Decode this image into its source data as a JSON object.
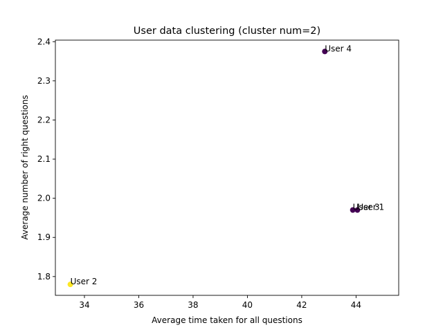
{
  "chart_data": {
    "type": "scatter",
    "title": "User data clustering (cluster num=2)",
    "xlabel": "Average time taken for all questions",
    "ylabel": "Average number of right questions",
    "xlim": [
      32.93,
      45.57
    ],
    "ylim": [
      1.752,
      2.404
    ],
    "xticks": [
      34,
      36,
      38,
      40,
      42,
      44
    ],
    "yticks": [
      1.8,
      1.9,
      2.0,
      2.1,
      2.2,
      2.3,
      2.4
    ],
    "grid": false,
    "points": [
      {
        "label": "User 1",
        "x": 44.05,
        "y": 1.97,
        "cluster": 0
      },
      {
        "label": "User 2",
        "x": 33.48,
        "y": 1.78,
        "cluster": 1
      },
      {
        "label": "User 3",
        "x": 43.88,
        "y": 1.97,
        "cluster": 0
      },
      {
        "label": "User 4",
        "x": 42.85,
        "y": 2.375,
        "cluster": 0
      }
    ],
    "cluster_colors": [
      "#440154",
      "#fde725"
    ]
  }
}
